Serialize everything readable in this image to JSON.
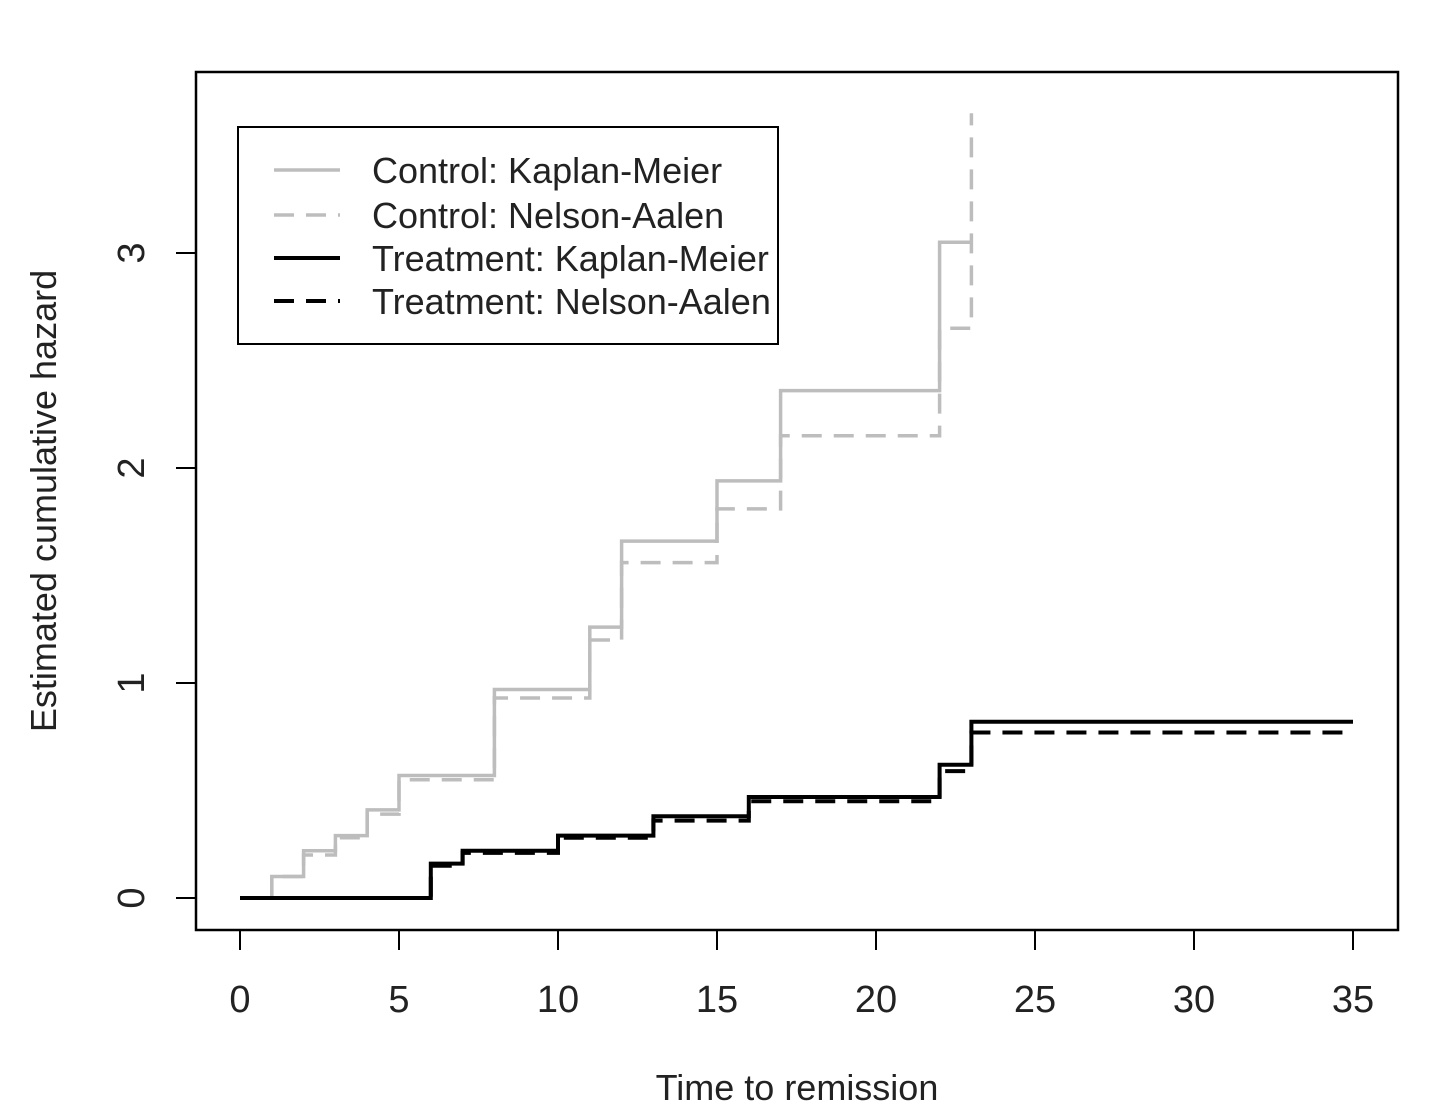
{
  "chart_data": {
    "type": "line",
    "step": true,
    "xlabel": "Time to remission",
    "ylabel": "Estimated cumulative hazard",
    "xlim": [
      0,
      35
    ],
    "ylim": [
      0,
      3.7
    ],
    "xticks": [
      0,
      5,
      10,
      15,
      20,
      25,
      30,
      35
    ],
    "yticks": [
      0,
      1,
      2,
      3
    ],
    "grid": false,
    "legend_position": "top-left",
    "series": [
      {
        "name": "Control: Kaplan-Meier",
        "color": "#bdbdbd",
        "dash": "solid",
        "x": [
          0,
          1,
          2,
          3,
          4,
          5,
          8,
          11,
          12,
          15,
          17,
          22,
          23
        ],
        "y": [
          0,
          0.1,
          0.22,
          0.29,
          0.41,
          0.57,
          0.97,
          1.26,
          1.66,
          1.94,
          2.36,
          3.05,
          3.05
        ]
      },
      {
        "name": "Control: Nelson-Aalen",
        "color": "#bdbdbd",
        "dash": "dashed",
        "x": [
          0,
          1,
          2,
          3,
          4,
          5,
          8,
          11,
          12,
          15,
          17,
          22,
          23
        ],
        "y": [
          0,
          0.1,
          0.2,
          0.28,
          0.39,
          0.55,
          0.93,
          1.2,
          1.56,
          1.81,
          2.15,
          2.65,
          3.65
        ]
      },
      {
        "name": "Treatment: Kaplan-Meier",
        "color": "#000000",
        "dash": "solid",
        "x": [
          0,
          6,
          7,
          10,
          13,
          16,
          22,
          23,
          35
        ],
        "y": [
          0,
          0.16,
          0.22,
          0.29,
          0.38,
          0.47,
          0.62,
          0.82,
          0.82
        ]
      },
      {
        "name": "Treatment: Nelson-Aalen",
        "color": "#000000",
        "dash": "dashed",
        "x": [
          0,
          6,
          7,
          10,
          13,
          16,
          22,
          23,
          35
        ],
        "y": [
          0,
          0.15,
          0.21,
          0.28,
          0.36,
          0.45,
          0.59,
          0.77,
          0.77
        ]
      }
    ]
  }
}
